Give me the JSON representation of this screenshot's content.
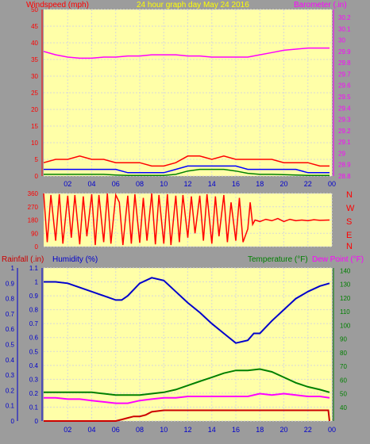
{
  "colors": {
    "plot_bg": "#ffffa8",
    "page_bg": "#9c9c9c",
    "wind": "#ff0000",
    "gust": "#ff0000",
    "wind_avg": "#0000ff",
    "wind_low": "#008000",
    "barometer": "#ff00ff",
    "direction": "#ff0000",
    "humidity": "#0000cc",
    "temperature": "#008000",
    "dew_point": "#ff00ff",
    "rainfall": "#cc0000",
    "axis_left": "#0000cc",
    "axis_wind": "#ff0000",
    "axis_baro": "#ff00ff",
    "axis_temp": "#008000"
  },
  "header": {
    "windspeed_label": "Windspeed (mph)",
    "title": "24 hour graph day   May 24 2016",
    "barometer_label": "Barometer (.in)"
  },
  "x_ticks": [
    "02",
    "04",
    "06",
    "08",
    "10",
    "12",
    "14",
    "16",
    "18",
    "20",
    "22",
    "00"
  ],
  "compass": [
    "N",
    "W",
    "S",
    "E",
    "N"
  ],
  "lower_labels": {
    "rainfall": "Rainfall (.in)",
    "humidity": "Humidity (%)",
    "temperature": "Temperature (°F)",
    "dew_point": "Dew Point (°F)"
  },
  "chart_data": [
    {
      "id": "wind_baro",
      "type": "line",
      "x_range": [
        0,
        24
      ],
      "y_left": {
        "label": "Windspeed (mph)",
        "ticks": [
          0,
          5,
          10,
          15,
          20,
          25,
          30,
          35,
          40,
          45,
          50
        ],
        "ylim": [
          0,
          50
        ]
      },
      "y_right": {
        "label": "Barometer (.in)",
        "ticks": [
          28.8,
          28.9,
          29,
          29.1,
          29.2,
          29.3,
          29.4,
          29.5,
          29.6,
          29.7,
          29.8,
          29.9,
          30,
          30.1,
          30.2
        ],
        "ylim": [
          28.8,
          30.27
        ]
      },
      "series": [
        {
          "key": "gust",
          "axis": "left",
          "x": [
            0,
            1,
            2,
            3,
            4,
            5,
            6,
            7,
            8,
            9,
            10,
            11,
            12,
            13,
            14,
            15,
            16,
            17,
            18,
            19,
            20,
            21,
            22,
            23,
            23.8
          ],
          "y": [
            4,
            5,
            5,
            6,
            5,
            5,
            4,
            4,
            4,
            3,
            3,
            4,
            6,
            6,
            5,
            6,
            5,
            5,
            5,
            5,
            4,
            4,
            4,
            3,
            3
          ]
        },
        {
          "key": "wind_avg",
          "axis": "left",
          "x": [
            0,
            1,
            2,
            3,
            4,
            5,
            6,
            7,
            8,
            9,
            10,
            11,
            12,
            13,
            14,
            15,
            16,
            17,
            18,
            19,
            20,
            21,
            22,
            23,
            23.8
          ],
          "y": [
            2,
            2,
            2,
            2,
            2,
            2,
            2,
            1,
            1,
            1,
            1,
            2,
            3,
            3,
            3,
            3,
            3,
            2,
            2,
            2,
            2,
            2,
            1,
            1,
            1
          ]
        },
        {
          "key": "wind_low",
          "axis": "left",
          "x": [
            0,
            1,
            2,
            3,
            4,
            5,
            6,
            7,
            8,
            9,
            10,
            11,
            12,
            13,
            14,
            15,
            16,
            17,
            18,
            19,
            20,
            21,
            22,
            23,
            23.8
          ],
          "y": [
            0.5,
            0.5,
            0.5,
            0.5,
            0.5,
            0.5,
            0.3,
            0.2,
            0.2,
            0.2,
            0.2,
            0.5,
            1.5,
            2,
            2,
            2,
            1.5,
            0.8,
            0.5,
            0.5,
            0.4,
            0.3,
            0.2,
            0.2,
            0.2
          ]
        },
        {
          "key": "barometer",
          "axis": "right",
          "x": [
            0,
            1,
            2,
            3,
            4,
            5,
            6,
            7,
            8,
            9,
            10,
            11,
            12,
            13,
            14,
            15,
            16,
            17,
            18,
            19,
            20,
            21,
            22,
            23,
            23.8
          ],
          "y": [
            29.9,
            29.87,
            29.85,
            29.84,
            29.84,
            29.85,
            29.85,
            29.86,
            29.86,
            29.87,
            29.87,
            29.87,
            29.86,
            29.86,
            29.85,
            29.85,
            29.85,
            29.85,
            29.87,
            29.89,
            29.91,
            29.92,
            29.93,
            29.93,
            29.93
          ]
        }
      ]
    },
    {
      "id": "direction",
      "type": "line",
      "x_range": [
        0,
        24
      ],
      "y_left": {
        "ticks": [
          0,
          90,
          180,
          270,
          360
        ],
        "ylim": [
          0,
          360
        ]
      },
      "series": [
        {
          "key": "direction",
          "note_style": "oscillating",
          "x": [
            0,
            0.3,
            0.6,
            1,
            1.3,
            1.6,
            2,
            2.3,
            2.6,
            3,
            3.3,
            3.6,
            4,
            4.3,
            4.6,
            5,
            5.3,
            5.6,
            6,
            6.3,
            6.6,
            7,
            7.3,
            7.6,
            8,
            8.3,
            8.6,
            9,
            9.3,
            9.6,
            10,
            10.3,
            10.6,
            11,
            11.3,
            11.6,
            12,
            12.3,
            12.6,
            13,
            13.3,
            13.6,
            14,
            14.3,
            14.6,
            15,
            15.3,
            15.6,
            16,
            16.3,
            16.6,
            17,
            17.2,
            17.4,
            17.6,
            18,
            18.5,
            19,
            19.5,
            20,
            20.5,
            21,
            21.5,
            22,
            22.5,
            23,
            23.8
          ],
          "y": [
            360,
            30,
            350,
            40,
            355,
            20,
            345,
            60,
            350,
            15,
            340,
            70,
            355,
            10,
            350,
            30,
            360,
            20,
            350,
            300,
            10,
            345,
            20,
            355,
            25,
            330,
            40,
            360,
            15,
            350,
            20,
            355,
            10,
            345,
            30,
            350,
            60,
            340,
            90,
            345,
            40,
            355,
            20,
            340,
            70,
            350,
            30,
            300,
            40,
            330,
            30,
            120,
            300,
            150,
            180,
            170,
            185,
            175,
            190,
            170,
            185,
            175,
            180,
            175,
            182,
            178,
            180
          ]
        }
      ]
    },
    {
      "id": "humidity_temp",
      "type": "line",
      "x_range": [
        0,
        24
      ],
      "y_left_rain": {
        "label": "Rainfall (.in)",
        "ticks": [
          0,
          0.1,
          0.2,
          0.3,
          0.4,
          0.5,
          0.6,
          0.7,
          0.8,
          0.9,
          1
        ],
        "ylim": [
          0,
          1
        ]
      },
      "y_left_hum": {
        "label": "Humidity (%)",
        "ticks": [
          0,
          0.1,
          0.2,
          0.3,
          0.4,
          0.5,
          0.6,
          0.7,
          0.8,
          0.9,
          1,
          1.1
        ],
        "ylim": [
          0,
          1.1
        ]
      },
      "y_right": {
        "label": "Temperature (°F)",
        "ticks": [
          40,
          50,
          60,
          70,
          80,
          90,
          100,
          110,
          120,
          130,
          140
        ],
        "ylim": [
          30,
          142
        ]
      },
      "series": [
        {
          "key": "humidity",
          "axis": "left_hum",
          "x": [
            0,
            1,
            2,
            3,
            4,
            5,
            6,
            6.5,
            7,
            8,
            9,
            10,
            11,
            12,
            13,
            14,
            15,
            16,
            17,
            17.5,
            18,
            19,
            20,
            21,
            22,
            23,
            23.8
          ],
          "y": [
            1.0,
            1.0,
            0.99,
            0.96,
            0.93,
            0.9,
            0.87,
            0.87,
            0.9,
            0.99,
            1.03,
            1.01,
            0.93,
            0.85,
            0.78,
            0.7,
            0.63,
            0.56,
            0.58,
            0.63,
            0.63,
            0.72,
            0.8,
            0.88,
            0.93,
            0.97,
            0.99
          ]
        },
        {
          "key": "temperature",
          "axis": "right",
          "x": [
            0,
            1,
            2,
            3,
            4,
            5,
            6,
            7,
            8,
            9,
            10,
            11,
            12,
            13,
            14,
            15,
            16,
            17,
            18,
            19,
            20,
            21,
            22,
            23,
            23.8
          ],
          "y": [
            51,
            51,
            51,
            51,
            51,
            50,
            49,
            49,
            49,
            50,
            51,
            53,
            56,
            59,
            62,
            65,
            67,
            67,
            68,
            66,
            62,
            58,
            55,
            53,
            51
          ]
        },
        {
          "key": "dew_point",
          "axis": "right",
          "x": [
            0,
            1,
            2,
            3,
            4,
            5,
            6,
            7,
            8,
            9,
            10,
            11,
            12,
            13,
            14,
            15,
            16,
            17,
            18,
            19,
            20,
            21,
            22,
            23,
            23.8
          ],
          "y": [
            47,
            47,
            46,
            46,
            45,
            44,
            43,
            43,
            45,
            46,
            47,
            47,
            48,
            48,
            48,
            48,
            48,
            48,
            50,
            49,
            50,
            49,
            48,
            48,
            47
          ]
        },
        {
          "key": "rainfall",
          "axis": "left_rain",
          "x": [
            0,
            5,
            6,
            6.5,
            7,
            7.5,
            8,
            8.5,
            9,
            10,
            11,
            12,
            13,
            14,
            15,
            16,
            17,
            18,
            19,
            20,
            21,
            22,
            23,
            23.7,
            23.8
          ],
          "y": [
            0,
            0,
            0,
            0.01,
            0.02,
            0.03,
            0.03,
            0.04,
            0.06,
            0.07,
            0.07,
            0.07,
            0.07,
            0.07,
            0.07,
            0.07,
            0.07,
            0.07,
            0.07,
            0.07,
            0.07,
            0.07,
            0.07,
            0.07,
            0
          ]
        }
      ]
    }
  ]
}
